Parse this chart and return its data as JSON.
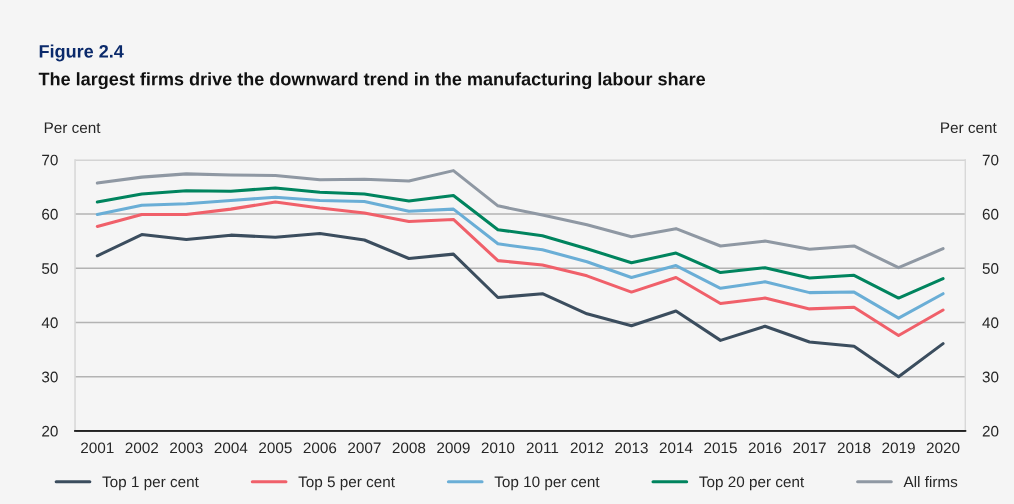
{
  "chart_data": {
    "type": "line",
    "title": "Figure 2.4",
    "subtitle": "The largest firms drive the downward trend in the manufacturing labour share",
    "ylabel": "Per cent",
    "y2label": "Per cent",
    "categories": [
      "2001",
      "2002",
      "2003",
      "2004",
      "2005",
      "2006",
      "2007",
      "2008",
      "2009",
      "2010",
      "2011",
      "2012",
      "2013",
      "2014",
      "2015",
      "2016",
      "2017",
      "2018",
      "2019",
      "2020"
    ],
    "series": [
      {
        "name": "Top 1 per cent",
        "color": "#3b4d5e",
        "values": [
          52.3,
          56.2,
          55.3,
          56.1,
          55.7,
          56.4,
          55.2,
          51.8,
          52.6,
          44.6,
          45.3,
          41.6,
          39.4,
          42.1,
          36.7,
          39.3,
          36.4,
          35.6,
          30.0,
          36.1
        ]
      },
      {
        "name": "Top 5 per cent",
        "color": "#f0606a",
        "values": [
          57.7,
          59.9,
          59.9,
          60.9,
          62.2,
          61.1,
          60.2,
          58.6,
          59.0,
          51.4,
          50.6,
          48.6,
          45.6,
          48.3,
          43.5,
          44.5,
          42.5,
          42.8,
          37.6,
          42.3
        ]
      },
      {
        "name": "Top 10 per cent",
        "color": "#6aaed6",
        "values": [
          59.9,
          61.6,
          61.9,
          62.5,
          63.1,
          62.5,
          62.3,
          60.5,
          60.9,
          54.5,
          53.4,
          51.2,
          48.3,
          50.5,
          46.3,
          47.5,
          45.5,
          45.6,
          40.8,
          45.3
        ]
      },
      {
        "name": "Top 20 per cent",
        "color": "#00845e",
        "values": [
          62.2,
          63.7,
          64.3,
          64.2,
          64.8,
          64.0,
          63.7,
          62.4,
          63.4,
          57.1,
          56.0,
          53.6,
          51.0,
          52.8,
          49.2,
          50.1,
          48.2,
          48.7,
          44.5,
          48.1
        ]
      },
      {
        "name": "All firms",
        "color": "#8f98a3",
        "values": [
          65.7,
          66.8,
          67.4,
          67.2,
          67.1,
          66.3,
          66.4,
          66.1,
          68.0,
          61.5,
          59.8,
          58.0,
          55.8,
          57.3,
          54.1,
          55.0,
          53.5,
          54.1,
          50.1,
          53.6
        ]
      }
    ],
    "ylim": [
      20,
      70
    ],
    "yticks": [
      20,
      30,
      40,
      50,
      60,
      70
    ],
    "y2lim": [
      20,
      70
    ],
    "y2ticks": [
      20,
      30,
      40,
      50,
      60,
      70
    ],
    "grid": "y",
    "legend": "bottom",
    "marker": "none",
    "line_style": "solid"
  }
}
